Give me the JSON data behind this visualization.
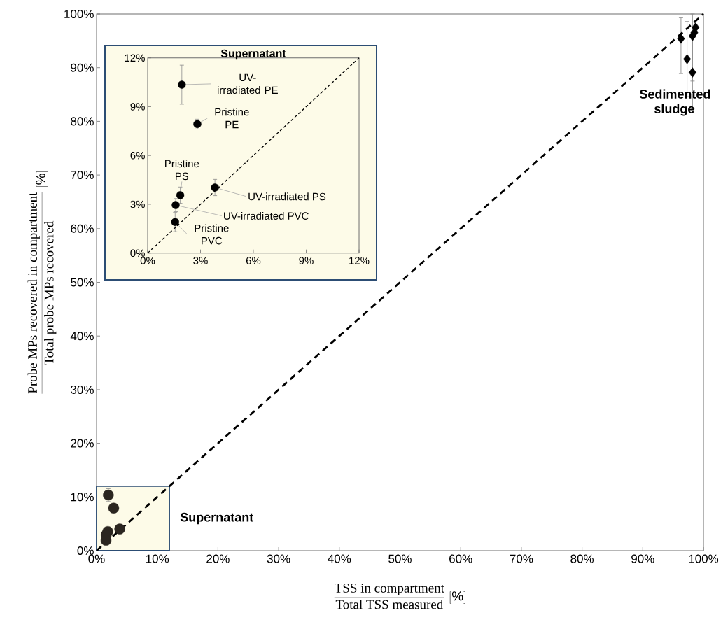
{
  "chart_data": [
    {
      "type": "scatter",
      "xlabel": "\\frac{\\mbox{TSS in compartment}}{\\mbox{Total TSS measured}}\\;[\\%]",
      "ylabel": "\\frac{\\mbox{Probe MPs recovered in compartment}}{\\mbox{Total probe MPs recovered}}\\;[\\%]",
      "xlim": [
        0,
        100
      ],
      "ylim": [
        0,
        100
      ],
      "xticks": [
        {
          "value": 0,
          "label": "0%"
        },
        {
          "value": 10,
          "label": "10%"
        },
        {
          "value": 20,
          "label": "20%"
        },
        {
          "value": 30,
          "label": "30%"
        },
        {
          "value": 40,
          "label": "40%"
        },
        {
          "value": 50,
          "label": "50%"
        },
        {
          "value": 60,
          "label": "60%"
        },
        {
          "value": 70,
          "label": "70%"
        },
        {
          "value": 80,
          "label": "80%"
        },
        {
          "value": 90,
          "label": "90%"
        },
        {
          "value": 100,
          "label": "100%"
        }
      ],
      "yticks": [
        {
          "value": 0,
          "label": "0%"
        },
        {
          "value": 10,
          "label": "10%"
        },
        {
          "value": 20,
          "label": "20%"
        },
        {
          "value": 30,
          "label": "30%"
        },
        {
          "value": 40,
          "label": "40%"
        },
        {
          "value": 50,
          "label": "50%"
        },
        {
          "value": 60,
          "label": "60%"
        },
        {
          "value": 70,
          "label": "70%"
        },
        {
          "value": 80,
          "label": "80%"
        },
        {
          "value": 90,
          "label": "90%"
        },
        {
          "value": 100,
          "label": "100%"
        }
      ],
      "series": [
        {
          "type": "area",
          "marker": "none",
          "color": "#fdfbe8",
          "x": [
            0,
            12
          ],
          "values": [
            12,
            12
          ]
        },
        {
          "type": "scatter",
          "marker": "circle",
          "color": "#2b2620",
          "x": [
            1.94,
            2.82,
            1.85,
            3.82,
            1.59,
            1.56
          ],
          "values": [
            10.35,
            7.93,
            3.56,
            4.03,
            2.95,
            1.91
          ],
          "errors": [
            1.2,
            null,
            null,
            null,
            null,
            null
          ]
        },
        {
          "type": "scatter",
          "marker": "diamond",
          "color": "#000000",
          "x": [
            96.3,
            97.3,
            98.2,
            98.2,
            98.5,
            98.7
          ],
          "values": [
            95.4,
            91.6,
            89.1,
            95.9,
            96.5,
            97.5
          ],
          "errors": [
            [
              88.9,
              99.3
            ],
            [
              84.6,
              98.6
            ],
            [
              82.3,
              95.9
            ],
            [
              87.5,
              100
            ],
            null,
            null
          ]
        },
        {
          "type": "line",
          "line_style": "dashed",
          "marker": "none",
          "color": "#000000",
          "x": [
            0,
            100
          ],
          "values": [
            0,
            100
          ]
        }
      ],
      "annotations": [
        "Supernatant",
        "Sedimented sludge"
      ]
    },
    {
      "type": "scatter",
      "title": "Supernatant",
      "xlim": [
        0,
        12
      ],
      "ylim": [
        0,
        12
      ],
      "xticks": [
        {
          "value": 0,
          "label": "0%"
        },
        {
          "value": 3,
          "label": "3%"
        },
        {
          "value": 6,
          "label": "6%"
        },
        {
          "value": 9,
          "label": "9%"
        },
        {
          "value": 12,
          "label": "12%"
        }
      ],
      "yticks": [
        {
          "value": 0,
          "label": "0%"
        },
        {
          "value": 3,
          "label": "3%"
        },
        {
          "value": 6,
          "label": "6%"
        },
        {
          "value": 9,
          "label": "9%"
        },
        {
          "value": 12,
          "label": "12%"
        }
      ],
      "series": [
        {
          "type": "scatter",
          "marker": "circle",
          "color": "#000000",
          "x": [
            1.94,
            2.82,
            1.85,
            3.82,
            1.59,
            1.56
          ],
          "values": [
            10.35,
            7.93,
            3.56,
            4.03,
            2.95,
            1.91
          ],
          "errors": [
            1.2,
            0.3,
            0.5,
            0.5,
            0.4,
            0.6
          ]
        },
        {
          "type": "line",
          "line_style": "dashed",
          "marker": "none",
          "color": "#000000",
          "x": [
            0,
            12
          ],
          "values": [
            0,
            12
          ]
        }
      ],
      "annotations": [
        {
          "text": "UV-irradiated PE",
          "x": 1.94,
          "y": 10.35
        },
        {
          "text": "Pristine PE",
          "x": 2.82,
          "y": 7.93
        },
        {
          "text": "Pristine PS",
          "x": 1.85,
          "y": 3.56
        },
        {
          "text": "UV-irradiated PS",
          "x": 3.82,
          "y": 4.03
        },
        {
          "text": "UV-irradiated PVC",
          "x": 1.59,
          "y": 2.95
        },
        {
          "text": "Pristine PVC",
          "x": 1.56,
          "y": 1.91
        }
      ]
    }
  ]
}
